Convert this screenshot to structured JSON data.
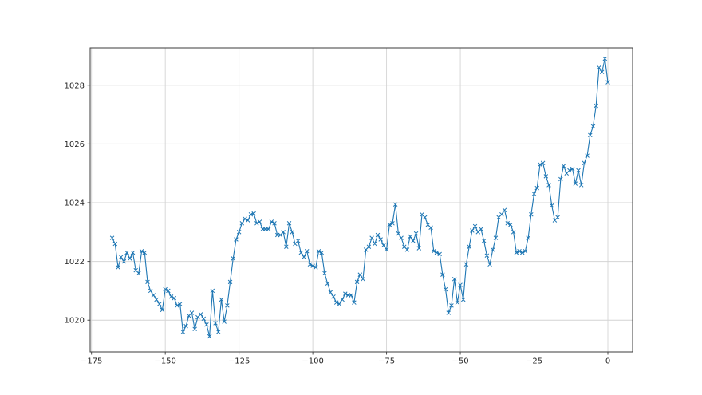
{
  "figure": {
    "background": "#ffffff",
    "plot_background": "#ffffff",
    "spine_color": "#3b3b3b",
    "grid_color": "#d4d4d4",
    "tick_color": "#3b3b3b",
    "label_color": "#262626"
  },
  "chart_data": {
    "type": "line",
    "title": "",
    "xlabel": "",
    "ylabel": "",
    "legend": null,
    "grid": true,
    "line_color": "#1f77b4",
    "marker": "x",
    "xlim": [
      -175.46,
      8.38
    ],
    "ylim": [
      1018.92,
      1029.27
    ],
    "xticks": [
      -175,
      -150,
      -125,
      -100,
      -75,
      -50,
      -25,
      0
    ],
    "xtick_labels": [
      "−175",
      "−150",
      "−125",
      "−100",
      "−75",
      "−50",
      "−25",
      "0"
    ],
    "yticks": [
      1020,
      1022,
      1024,
      1026,
      1028
    ],
    "ytick_labels": [
      "1020",
      "1022",
      "1024",
      "1026",
      "1028"
    ],
    "series": [
      {
        "name": "series-0",
        "x": [
          -168,
          -167,
          -166,
          -165,
          -164,
          -163,
          -162,
          -161,
          -160,
          -159,
          -158,
          -157,
          -156,
          -155,
          -154,
          -153,
          -152,
          -151,
          -150,
          -149,
          -148,
          -147,
          -146,
          -145,
          -144,
          -143,
          -142,
          -141,
          -140,
          -139,
          -138,
          -137,
          -136,
          -135,
          -134,
          -133,
          -132,
          -131,
          -130,
          -129,
          -128,
          -127,
          -126,
          -125,
          -124,
          -123,
          -122,
          -121,
          -120,
          -119,
          -118,
          -117,
          -116,
          -115,
          -114,
          -113,
          -112,
          -111,
          -110,
          -109,
          -108,
          -107,
          -106,
          -105,
          -104,
          -103,
          -102,
          -101,
          -100,
          -99,
          -98,
          -97,
          -96,
          -95,
          -94,
          -93,
          -92,
          -91,
          -90,
          -89,
          -88,
          -87,
          -86,
          -85,
          -84,
          -83,
          -82,
          -81,
          -80,
          -79,
          -78,
          -77,
          -76,
          -75,
          -74,
          -73,
          -72,
          -71,
          -70,
          -69,
          -68,
          -67,
          -66,
          -65,
          -64,
          -63,
          -62,
          -61,
          -60,
          -59,
          -58,
          -57,
          -56,
          -55,
          -54,
          -53,
          -52,
          -51,
          -50,
          -49,
          -48,
          -47,
          -46,
          -45,
          -44,
          -43,
          -42,
          -41,
          -40,
          -39,
          -38,
          -37,
          -36,
          -35,
          -34,
          -33,
          -32,
          -31,
          -30,
          -29,
          -28,
          -27,
          -26,
          -25,
          -24,
          -23,
          -22,
          -21,
          -20,
          -19,
          -18,
          -17,
          -16,
          -15,
          -14,
          -13,
          -12,
          -11,
          -10,
          -9,
          -8,
          -7,
          -6,
          -5,
          -4,
          -3,
          -2,
          -1,
          0
        ],
        "values": [
          1022.8,
          1022.6,
          1021.8,
          1022.15,
          1022.0,
          1022.3,
          1022.1,
          1022.3,
          1021.7,
          1021.6,
          1022.35,
          1022.3,
          1021.3,
          1021.0,
          1020.85,
          1020.7,
          1020.55,
          1020.35,
          1021.05,
          1021.0,
          1020.8,
          1020.75,
          1020.5,
          1020.55,
          1019.6,
          1019.8,
          1020.15,
          1020.25,
          1019.7,
          1020.1,
          1020.2,
          1020.05,
          1019.85,
          1019.45,
          1021.0,
          1019.9,
          1019.6,
          1020.7,
          1019.95,
          1020.5,
          1021.3,
          1022.1,
          1022.75,
          1023.0,
          1023.3,
          1023.45,
          1023.4,
          1023.6,
          1023.63,
          1023.3,
          1023.35,
          1023.1,
          1023.1,
          1023.1,
          1023.35,
          1023.3,
          1022.9,
          1022.9,
          1023.0,
          1022.5,
          1023.3,
          1023.0,
          1022.6,
          1022.7,
          1022.3,
          1022.15,
          1022.35,
          1021.9,
          1021.85,
          1021.8,
          1022.35,
          1022.3,
          1021.6,
          1021.25,
          1020.95,
          1020.8,
          1020.6,
          1020.55,
          1020.7,
          1020.9,
          1020.85,
          1020.85,
          1020.6,
          1021.3,
          1021.55,
          1021.4,
          1022.4,
          1022.5,
          1022.8,
          1022.6,
          1022.9,
          1022.75,
          1022.55,
          1022.4,
          1023.25,
          1023.3,
          1023.94,
          1022.95,
          1022.8,
          1022.5,
          1022.4,
          1022.85,
          1022.7,
          1022.95,
          1022.45,
          1023.6,
          1023.5,
          1023.25,
          1023.15,
          1022.35,
          1022.3,
          1022.25,
          1021.55,
          1021.05,
          1020.25,
          1020.5,
          1021.4,
          1020.6,
          1021.2,
          1020.7,
          1021.9,
          1022.5,
          1023.05,
          1023.2,
          1023.0,
          1023.1,
          1022.7,
          1022.2,
          1021.9,
          1022.4,
          1022.8,
          1023.5,
          1023.6,
          1023.75,
          1023.3,
          1023.25,
          1023.0,
          1022.3,
          1022.35,
          1022.3,
          1022.35,
          1022.8,
          1023.6,
          1024.3,
          1024.5,
          1025.3,
          1025.35,
          1024.9,
          1024.6,
          1023.9,
          1023.4,
          1023.5,
          1024.8,
          1025.25,
          1025.0,
          1025.1,
          1025.15,
          1024.65,
          1025.1,
          1024.6,
          1025.35,
          1025.6,
          1026.3,
          1026.6,
          1027.3,
          1028.6,
          1028.45,
          1028.9,
          1028.1
        ]
      }
    ]
  }
}
